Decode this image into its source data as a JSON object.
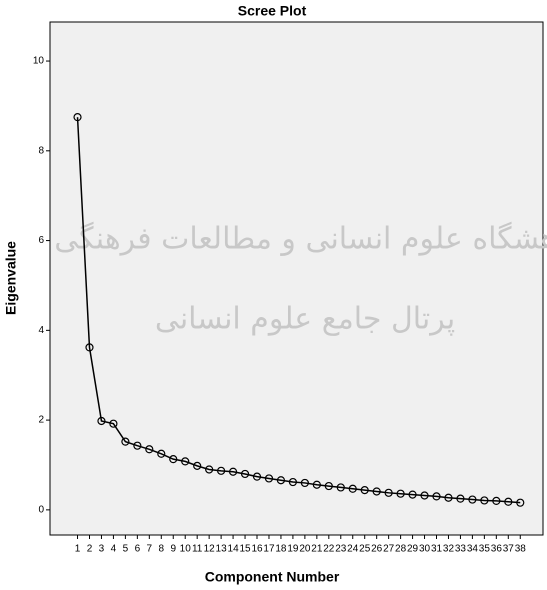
{
  "chart_data": {
    "type": "line",
    "title": "Scree Plot",
    "x_label": "Component Number",
    "y_label": "Eigenvalue",
    "watermark": [
      "پژوهشگاه علوم انسانی و مطالعات فرهنگی",
      "پرتال جامع علوم انسانی"
    ],
    "x": [
      1,
      2,
      3,
      4,
      5,
      6,
      7,
      8,
      9,
      10,
      11,
      12,
      13,
      14,
      15,
      16,
      17,
      18,
      19,
      20,
      21,
      22,
      23,
      24,
      25,
      26,
      27,
      28,
      29,
      30,
      31,
      32,
      33,
      34,
      35,
      36,
      37,
      38
    ],
    "values": [
      8.75,
      3.62,
      1.98,
      1.92,
      1.52,
      1.43,
      1.35,
      1.25,
      1.13,
      1.08,
      0.98,
      0.9,
      0.87,
      0.85,
      0.8,
      0.74,
      0.7,
      0.66,
      0.62,
      0.6,
      0.56,
      0.53,
      0.5,
      0.47,
      0.44,
      0.41,
      0.38,
      0.36,
      0.34,
      0.32,
      0.3,
      0.27,
      0.25,
      0.23,
      0.21,
      0.2,
      0.18,
      0.16
    ],
    "color": "#000000",
    "xlim": [
      -1.3,
      39.9
    ],
    "xticks": [
      1,
      2,
      3,
      4,
      5,
      6,
      7,
      8,
      9,
      10,
      11,
      12,
      13,
      14,
      15,
      16,
      17,
      18,
      19,
      20,
      21,
      22,
      23,
      24,
      25,
      26,
      27,
      28,
      29,
      30,
      31,
      32,
      33,
      34,
      35,
      36,
      37,
      38
    ],
    "ylim": [
      -0.56,
      10.87
    ],
    "yticks": [
      0,
      2,
      4,
      6,
      8,
      10
    ]
  }
}
